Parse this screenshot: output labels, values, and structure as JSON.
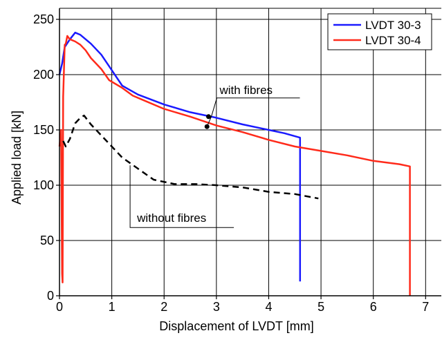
{
  "chart_data": {
    "type": "line",
    "xlabel": "Displacement of LVDT [mm]",
    "ylabel": "Applied load [kN]",
    "xlim": [
      0,
      7.3
    ],
    "ylim": [
      0,
      260
    ],
    "x_ticks": [
      0,
      1,
      2,
      3,
      4,
      5,
      6,
      7
    ],
    "y_ticks": [
      0,
      50,
      100,
      150,
      200,
      250
    ],
    "x_tick_labels": [
      "0",
      "1",
      "2",
      "3",
      "4",
      "5",
      "6",
      "7"
    ],
    "y_tick_labels": [
      "0",
      "50",
      "100",
      "150",
      "200",
      "250"
    ],
    "grid": true,
    "legend_position": "top-right",
    "series": [
      {
        "name": "LVDT 30-3",
        "color": "#1a1aff",
        "dash": "solid",
        "points": [
          [
            0.0,
            200
          ],
          [
            0.05,
            210
          ],
          [
            0.1,
            225
          ],
          [
            0.2,
            232
          ],
          [
            0.3,
            238
          ],
          [
            0.4,
            236
          ],
          [
            0.5,
            232
          ],
          [
            0.6,
            228
          ],
          [
            0.8,
            218
          ],
          [
            1.0,
            204
          ],
          [
            1.2,
            190
          ],
          [
            1.5,
            182
          ],
          [
            2.0,
            173
          ],
          [
            2.5,
            166
          ],
          [
            3.0,
            161
          ],
          [
            3.5,
            155
          ],
          [
            4.0,
            150
          ],
          [
            4.3,
            147
          ],
          [
            4.6,
            143
          ],
          [
            4.6,
            13
          ]
        ]
      },
      {
        "name": "LVDT 30-4",
        "color": "#ff2a1a",
        "dash": "solid",
        "points": [
          [
            0.0,
            135
          ],
          [
            0.03,
            150
          ],
          [
            0.05,
            20
          ],
          [
            0.06,
            12
          ],
          [
            0.07,
            180
          ],
          [
            0.1,
            227
          ],
          [
            0.12,
            228
          ],
          [
            0.15,
            235
          ],
          [
            0.18,
            233
          ],
          [
            0.2,
            232
          ],
          [
            0.3,
            230
          ],
          [
            0.4,
            227
          ],
          [
            0.5,
            222
          ],
          [
            0.6,
            215
          ],
          [
            0.8,
            205
          ],
          [
            0.95,
            195
          ],
          [
            1.2,
            188
          ],
          [
            1.4,
            181
          ],
          [
            1.6,
            177
          ],
          [
            2.0,
            169
          ],
          [
            2.5,
            162
          ],
          [
            3.0,
            154
          ],
          [
            3.5,
            148
          ],
          [
            4.0,
            141
          ],
          [
            4.5,
            135
          ],
          [
            5.0,
            131
          ],
          [
            5.5,
            127
          ],
          [
            6.0,
            122
          ],
          [
            6.5,
            119
          ],
          [
            6.7,
            117
          ],
          [
            6.7,
            0
          ]
        ]
      },
      {
        "name": "",
        "color": "#000000",
        "dash": "dashed",
        "points": [
          [
            0.07,
            140
          ],
          [
            0.12,
            135
          ],
          [
            0.2,
            142
          ],
          [
            0.3,
            156
          ],
          [
            0.4,
            161
          ],
          [
            0.47,
            163
          ],
          [
            0.6,
            155
          ],
          [
            0.8,
            145
          ],
          [
            1.0,
            135
          ],
          [
            1.2,
            125
          ],
          [
            1.5,
            115
          ],
          [
            1.8,
            105
          ],
          [
            2.2,
            101
          ],
          [
            2.6,
            101
          ],
          [
            3.0,
            100
          ],
          [
            3.5,
            98
          ],
          [
            4.0,
            94
          ],
          [
            4.5,
            92
          ],
          [
            4.95,
            88
          ]
        ]
      }
    ],
    "annotations": [
      {
        "text": "with fibres",
        "series_points": [
          [
            2.85,
            162
          ],
          [
            2.82,
            153
          ]
        ]
      },
      {
        "text": "without fibres",
        "series_points": [
          [
            1.35,
            118
          ]
        ]
      }
    ]
  }
}
